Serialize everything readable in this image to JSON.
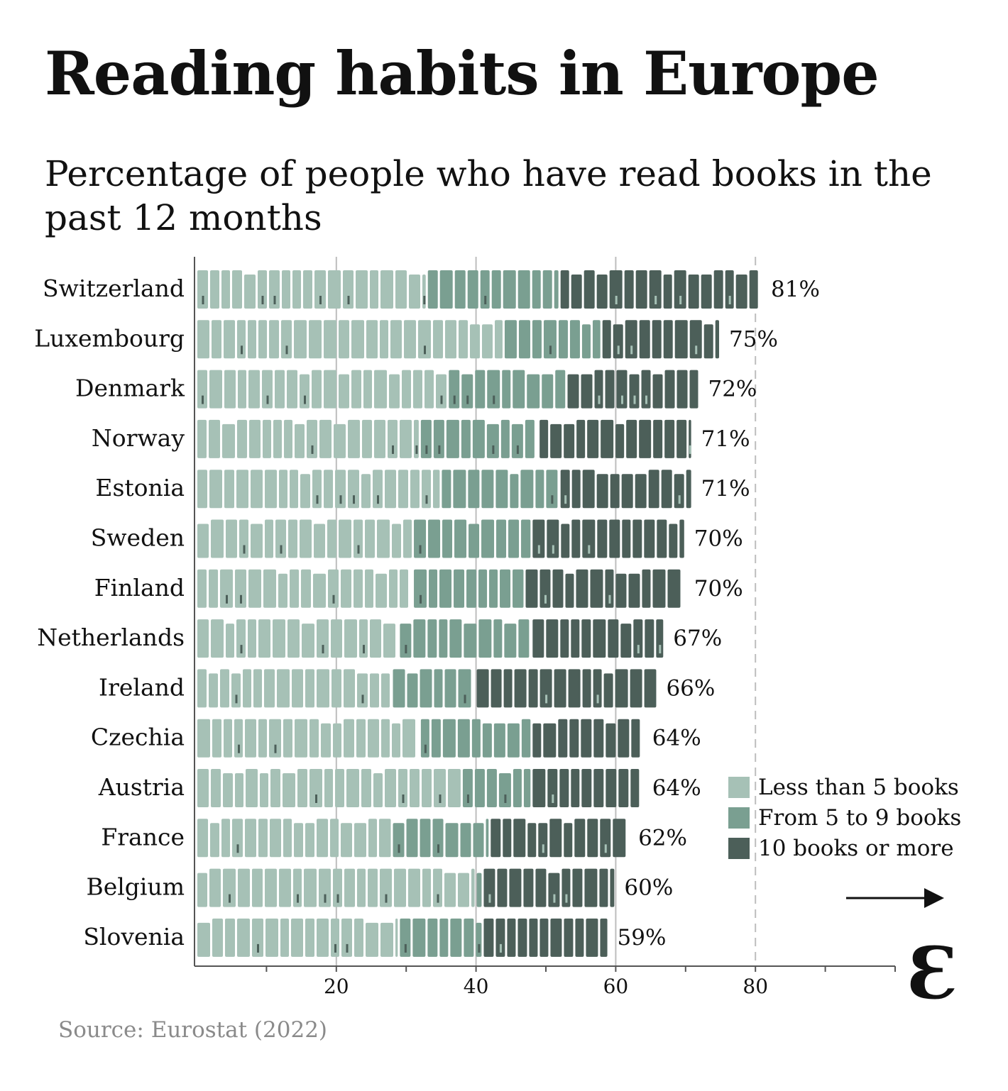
{
  "title": "Reading habits in Europe",
  "subtitle": "Percentage of people who have read books in the past 12 months",
  "source": "Source: Eurostat (2022)",
  "logo_text": "Ɛ",
  "colors": {
    "less5": "#a6c1b6",
    "five9": "#7a9f91",
    "ten_plus": "#4c5f59",
    "axis": "#555555"
  },
  "legend": [
    {
      "label": "Less than 5 books",
      "color": "#a6c1b6"
    },
    {
      "label": "From 5 to 9 books",
      "color": "#7a9f91"
    },
    {
      "label": "10 books or more",
      "color": "#4c5f59"
    }
  ],
  "chart_data": {
    "type": "bar",
    "stacked": true,
    "orientation": "horizontal",
    "categories": [
      "Switzerland",
      "Luxembourg",
      "Denmark",
      "Norway",
      "Estonia",
      "Sweden",
      "Finland",
      "Netherlands",
      "Ireland",
      "Czechia",
      "Austria",
      "France",
      "Belgium",
      "Slovenia"
    ],
    "totals": [
      81,
      75,
      72,
      71,
      71,
      70,
      70,
      67,
      66,
      64,
      64,
      62,
      60,
      59
    ],
    "total_labels": [
      "81%",
      "75%",
      "72%",
      "71%",
      "71%",
      "70%",
      "70%",
      "67%",
      "66%",
      "64%",
      "64%",
      "62%",
      "60%",
      "59%"
    ],
    "series": [
      {
        "name": "Less than 5 books",
        "values": [
          33,
          44,
          36,
          32,
          35,
          31,
          31,
          29,
          28,
          32,
          38,
          28,
          40,
          29
        ]
      },
      {
        "name": "From 5 to 9 books",
        "values": [
          19,
          14,
          17,
          17,
          17,
          17,
          16,
          19,
          12,
          16,
          10,
          14,
          1,
          12
        ]
      },
      {
        "name": "10 books or more",
        "values": [
          29,
          17,
          19,
          22,
          19,
          22,
          23,
          19,
          26,
          16,
          16,
          20,
          19,
          18
        ]
      }
    ],
    "xticks": [
      20,
      40,
      60,
      80
    ],
    "xlim": [
      0,
      100
    ],
    "grid": true,
    "legend_position": "bottom-right"
  }
}
